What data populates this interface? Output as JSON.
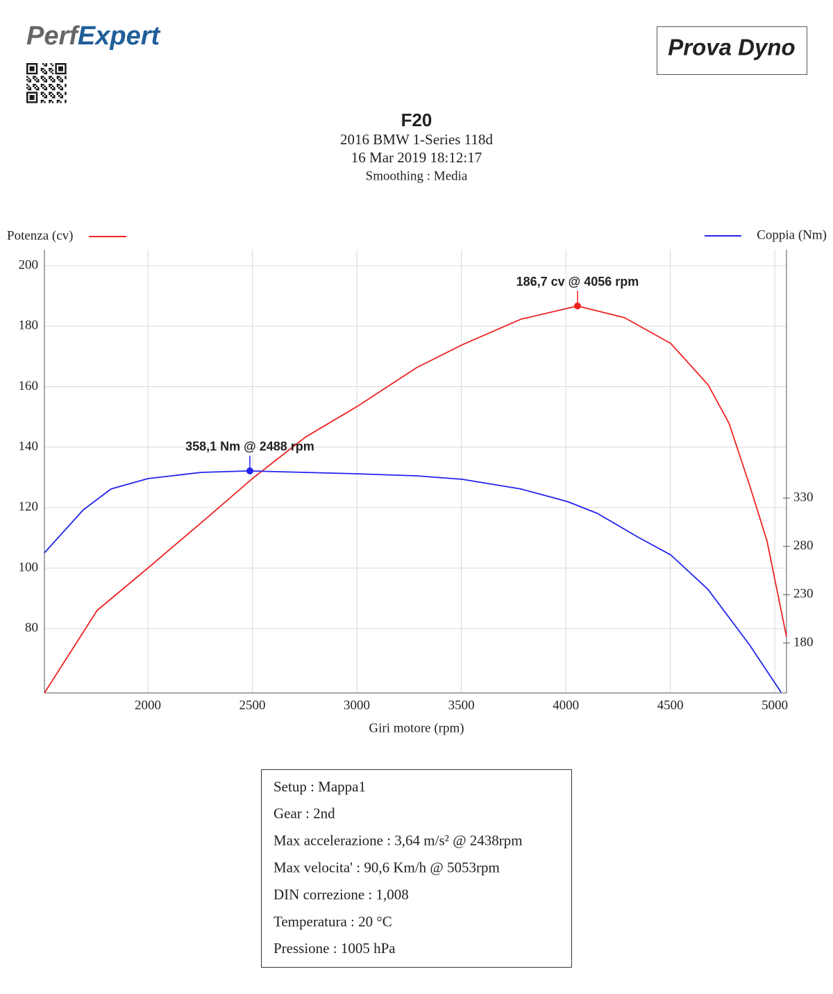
{
  "logo": [
    "Perf",
    "Expert"
  ],
  "badge": "Prova Dyno",
  "chart_data": {
    "type": "line",
    "title": "F20",
    "subtitle": [
      "2016 BMW 1-Series 118d",
      "16 Mar 2019 18:12:17",
      "Smoothing : Media"
    ],
    "x_label": "Giri motore (rpm)",
    "y_label": "Potenza (cv)",
    "y2_label": "Coppia (Nm)",
    "xlim": [
      1505,
      5056
    ],
    "xticks": [
      2000,
      2500,
      3000,
      3500,
      4000,
      4500,
      5000
    ],
    "ylim": [
      58.7,
      205.3
    ],
    "yticks": [
      80,
      100,
      120,
      140,
      160,
      180,
      200
    ],
    "y2lim": [
      128.3,
      587
    ],
    "y2ticks": [
      180,
      230,
      280,
      330
    ],
    "grid": true,
    "series": [
      {
        "name": "Potenza (cv)",
        "color": "#ee2222",
        "axis": "y",
        "x": [
          1505,
          1757,
          2000,
          2289,
          2500,
          2754,
          3007,
          3286,
          3505,
          3784,
          4056,
          4282,
          4502,
          4681,
          4781,
          4880,
          4963,
          5056
        ],
        "values": [
          58.7,
          86,
          100,
          117,
          129.6,
          143.3,
          153.7,
          166.3,
          173.9,
          182.3,
          186.7,
          182.8,
          174.3,
          160.6,
          147.9,
          127.3,
          108.9,
          77.3
        ]
      },
      {
        "name": "Coppia (Nm)",
        "color": "#2222ee",
        "axis": "y2",
        "x": [
          1505,
          1691,
          1824,
          2000,
          2256,
          2488,
          3007,
          3286,
          3505,
          3784,
          4007,
          4150,
          4349,
          4502,
          4681,
          4880,
          5030
        ],
        "values": [
          273.3,
          317.8,
          339.4,
          350.1,
          356.6,
          358.1,
          355.1,
          353,
          349.4,
          339.4,
          326.4,
          314.2,
          289.1,
          271.2,
          235.3,
          177.8,
          129
        ]
      }
    ],
    "annotations": [
      {
        "text": "186,7 cv @ 4056 rpm",
        "series": 0,
        "x": 4056,
        "y": 186.7
      },
      {
        "text": "358,1 Nm @ 2488 rpm",
        "series": 1,
        "x": 2488,
        "y": 358.1
      }
    ]
  },
  "info": [
    "Setup : Mappa1",
    "Gear : 2nd",
    "Max accelerazione : 3,64 m/s² @ 2438rpm",
    "Max velocita' : 90,6 Km/h @ 5053rpm",
    "DIN correzione : 1,008",
    "Temperatura : 20 °C",
    "Pressione : 1005 hPa"
  ]
}
